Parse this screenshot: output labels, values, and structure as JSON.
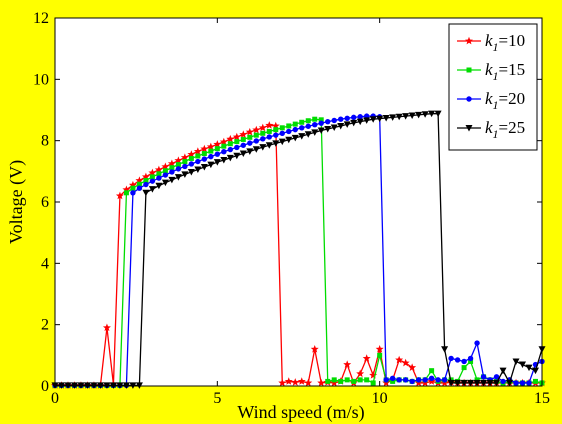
{
  "chart_data": {
    "type": "line",
    "xlabel": "Wind speed (m/s)",
    "ylabel": "Voltage (V)",
    "xlim": [
      0,
      15
    ],
    "ylim": [
      0,
      12
    ],
    "x_ticks": [
      "0",
      "5",
      "10",
      "15"
    ],
    "y_ticks": [
      "0",
      "2",
      "4",
      "6",
      "8",
      "10",
      "12"
    ],
    "grid": false,
    "legend_position": "top-right",
    "colors": {
      "background": "#ffff00",
      "plot_area": "#ffffff"
    },
    "series": [
      {
        "name": "k1=10",
        "legend_main": "k",
        "legend_sub": "1",
        "legend_rest": "=10",
        "color": "#ff0000",
        "marker": "star",
        "x": [
          0,
          0.2,
          0.4,
          0.6,
          0.8,
          1.0,
          1.2,
          1.4,
          1.6,
          1.8,
          2.0,
          2.2,
          2.4,
          2.6,
          2.8,
          3.0,
          3.2,
          3.4,
          3.6,
          3.8,
          4.0,
          4.2,
          4.4,
          4.6,
          4.8,
          5.0,
          5.2,
          5.4,
          5.6,
          5.8,
          6.0,
          6.2,
          6.4,
          6.6,
          6.8,
          7.0,
          7.2,
          7.4,
          7.6,
          7.8,
          8.0,
          8.2,
          8.4,
          8.6,
          8.8,
          9.0,
          9.2,
          9.4,
          9.6,
          9.8,
          10.0,
          10.2,
          10.4,
          10.6,
          10.8,
          11.0,
          11.2,
          11.4,
          11.6,
          11.8,
          12.0,
          12.2,
          12.4,
          12.6,
          12.8,
          13.0,
          13.2,
          13.4,
          13.6,
          13.8,
          14.0,
          14.2,
          14.4,
          14.6,
          14.8,
          15.0
        ],
        "y": [
          0.02,
          0.02,
          0.02,
          0.02,
          0.02,
          0.02,
          0.02,
          0.02,
          1.9,
          0.05,
          6.2,
          6.4,
          6.55,
          6.7,
          6.82,
          6.95,
          7.05,
          7.15,
          7.25,
          7.35,
          7.45,
          7.55,
          7.65,
          7.73,
          7.8,
          7.88,
          7.96,
          8.05,
          8.12,
          8.2,
          8.28,
          8.35,
          8.42,
          8.5,
          8.48,
          0.1,
          0.15,
          0.12,
          0.15,
          0.1,
          1.2,
          0.1,
          0.12,
          0.1,
          0.15,
          0.7,
          0.1,
          0.4,
          0.9,
          0.35,
          1.2,
          0.1,
          0.2,
          0.85,
          0.75,
          0.6,
          0.1,
          0.1,
          0.15,
          0.1,
          0.1,
          0.12,
          0.1,
          0.1,
          0.1,
          0.1,
          0.1,
          0.1,
          0.1,
          0.1,
          0.1,
          0.1,
          0.1,
          0.1,
          0.1,
          0.1
        ]
      },
      {
        "name": "k1=15",
        "legend_main": "k",
        "legend_sub": "1",
        "legend_rest": "=15",
        "color": "#00dd00",
        "marker": "square",
        "x": [
          0,
          0.2,
          0.4,
          0.6,
          0.8,
          1.0,
          1.2,
          1.4,
          1.6,
          1.8,
          2.0,
          2.2,
          2.4,
          2.6,
          2.8,
          3.0,
          3.2,
          3.4,
          3.6,
          3.8,
          4.0,
          4.2,
          4.4,
          4.6,
          4.8,
          5.0,
          5.2,
          5.4,
          5.6,
          5.8,
          6.0,
          6.2,
          6.4,
          6.6,
          6.8,
          7.0,
          7.2,
          7.4,
          7.6,
          7.8,
          8.0,
          8.2,
          8.4,
          8.6,
          8.8,
          9.0,
          9.2,
          9.4,
          9.6,
          9.8,
          10.0,
          10.2,
          10.4,
          10.6,
          10.8,
          11.0,
          11.2,
          11.4,
          11.6,
          11.8,
          12.0,
          12.2,
          12.4,
          12.6,
          12.8,
          13.0,
          13.2,
          13.4,
          13.6,
          13.8,
          14.0,
          14.2,
          14.4,
          14.6,
          14.8,
          15.0
        ],
        "y": [
          0.02,
          0.02,
          0.02,
          0.02,
          0.02,
          0.02,
          0.02,
          0.02,
          0.02,
          0.02,
          0.02,
          6.3,
          6.45,
          6.58,
          6.7,
          6.82,
          6.92,
          7.02,
          7.12,
          7.22,
          7.32,
          7.42,
          7.5,
          7.58,
          7.66,
          7.74,
          7.82,
          7.9,
          7.97,
          8.04,
          8.11,
          8.18,
          8.24,
          8.3,
          8.36,
          8.42,
          8.48,
          8.54,
          8.6,
          8.65,
          8.7,
          8.68,
          0.15,
          0.2,
          0.15,
          0.2,
          0.15,
          0.2,
          0.2,
          0.1,
          1.0,
          0.2,
          0.15,
          0.2,
          0.2,
          0.15,
          0.2,
          0.2,
          0.5,
          0.15,
          0.2,
          0.2,
          0.15,
          0.6,
          0.8,
          0.2,
          0.3,
          0.2,
          0.15,
          0.1,
          0.15,
          0.1,
          0.1,
          0.1,
          0.15,
          0.1
        ]
      },
      {
        "name": "k1=20",
        "legend_main": "k",
        "legend_sub": "1",
        "legend_rest": "=20",
        "color": "#0000ff",
        "marker": "circle",
        "x": [
          0,
          0.2,
          0.4,
          0.6,
          0.8,
          1.0,
          1.2,
          1.4,
          1.6,
          1.8,
          2.0,
          2.2,
          2.4,
          2.6,
          2.8,
          3.0,
          3.2,
          3.4,
          3.6,
          3.8,
          4.0,
          4.2,
          4.4,
          4.6,
          4.8,
          5.0,
          5.2,
          5.4,
          5.6,
          5.8,
          6.0,
          6.2,
          6.4,
          6.6,
          6.8,
          7.0,
          7.2,
          7.4,
          7.6,
          7.8,
          8.0,
          8.2,
          8.4,
          8.6,
          8.8,
          9.0,
          9.2,
          9.4,
          9.6,
          9.8,
          10.0,
          10.2,
          10.4,
          10.6,
          10.8,
          11.0,
          11.2,
          11.4,
          11.6,
          11.8,
          12.0,
          12.2,
          12.4,
          12.6,
          12.8,
          13.0,
          13.2,
          13.4,
          13.6,
          13.8,
          14.0,
          14.2,
          14.4,
          14.6,
          14.8,
          15.0
        ],
        "y": [
          0.02,
          0.02,
          0.02,
          0.02,
          0.02,
          0.02,
          0.02,
          0.02,
          0.02,
          0.02,
          0.02,
          0.02,
          6.3,
          6.45,
          6.57,
          6.68,
          6.78,
          6.88,
          6.98,
          7.08,
          7.16,
          7.24,
          7.32,
          7.4,
          7.48,
          7.56,
          7.64,
          7.71,
          7.78,
          7.85,
          7.92,
          7.99,
          8.06,
          8.12,
          8.18,
          8.24,
          8.3,
          8.36,
          8.42,
          8.47,
          8.52,
          8.57,
          8.62,
          8.66,
          8.7,
          8.73,
          8.76,
          8.78,
          8.8,
          8.8,
          8.78,
          0.2,
          0.25,
          0.2,
          0.2,
          0.15,
          0.2,
          0.2,
          0.25,
          0.2,
          0.2,
          0.9,
          0.85,
          0.8,
          0.9,
          1.4,
          0.3,
          0.2,
          0.3,
          0.15,
          0.2,
          0.1,
          0.1,
          0.1,
          0.7,
          0.8
        ]
      },
      {
        "name": "k1=25",
        "legend_main": "k",
        "legend_sub": "1",
        "legend_rest": "=25",
        "color": "#000000",
        "marker": "triangle-down",
        "x": [
          0,
          0.2,
          0.4,
          0.6,
          0.8,
          1.0,
          1.2,
          1.4,
          1.6,
          1.8,
          2.0,
          2.2,
          2.4,
          2.6,
          2.8,
          3.0,
          3.2,
          3.4,
          3.6,
          3.8,
          4.0,
          4.2,
          4.4,
          4.6,
          4.8,
          5.0,
          5.2,
          5.4,
          5.6,
          5.8,
          6.0,
          6.2,
          6.4,
          6.6,
          6.8,
          7.0,
          7.2,
          7.4,
          7.6,
          7.8,
          8.0,
          8.2,
          8.4,
          8.6,
          8.8,
          9.0,
          9.2,
          9.4,
          9.6,
          9.8,
          10.0,
          10.2,
          10.4,
          10.6,
          10.8,
          11.0,
          11.2,
          11.4,
          11.6,
          11.8,
          12.0,
          12.2,
          12.4,
          12.6,
          12.8,
          13.0,
          13.2,
          13.4,
          13.6,
          13.8,
          14.0,
          14.2,
          14.4,
          14.6,
          14.8,
          15.0
        ],
        "y": [
          0.02,
          0.02,
          0.02,
          0.02,
          0.02,
          0.02,
          0.02,
          0.02,
          0.02,
          0.02,
          0.02,
          0.02,
          0.02,
          0.02,
          6.3,
          6.42,
          6.53,
          6.63,
          6.72,
          6.81,
          6.9,
          6.98,
          7.06,
          7.14,
          7.22,
          7.3,
          7.37,
          7.44,
          7.51,
          7.58,
          7.65,
          7.72,
          7.79,
          7.85,
          7.91,
          7.97,
          8.03,
          8.09,
          8.15,
          8.21,
          8.27,
          8.33,
          8.38,
          8.43,
          8.48,
          8.53,
          8.58,
          8.62,
          8.66,
          8.7,
          8.72,
          8.74,
          8.76,
          8.78,
          8.8,
          8.82,
          8.84,
          8.86,
          8.88,
          8.88,
          1.2,
          0.1,
          0.1,
          0.1,
          0.1,
          0.1,
          0.1,
          0.1,
          0.1,
          0.5,
          0.1,
          0.8,
          0.7,
          0.6,
          0.5,
          1.2
        ]
      }
    ]
  }
}
